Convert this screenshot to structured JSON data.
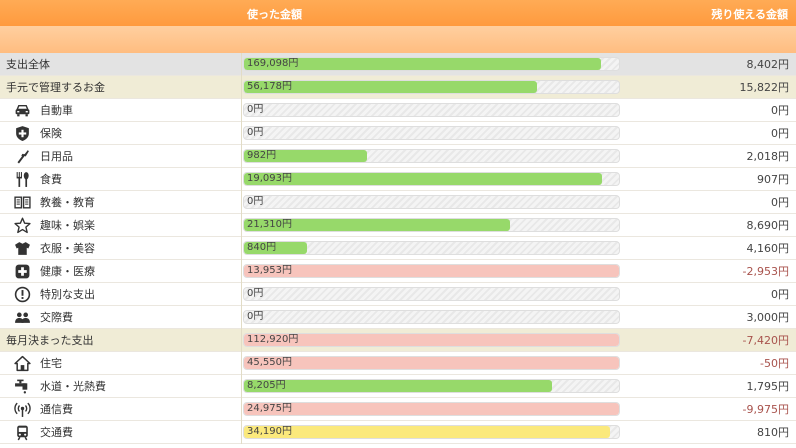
{
  "header": {
    "used_label": "使った金額",
    "remain_label": "残り使える金額"
  },
  "colors": {
    "header": "#ff9a3e",
    "green": "#97d96a",
    "pink": "#f7c4bc",
    "yellow": "#fbe97c",
    "negative": "#a8524c"
  },
  "rows": [
    {
      "kind": "total",
      "name": "支出全体",
      "used": "169,098円",
      "remain": "8,402円",
      "bar_pct": 95.2,
      "bar_color": "green"
    },
    {
      "kind": "group",
      "name": "手元で管理するお金",
      "used": "56,178円",
      "remain": "15,822円",
      "bar_pct": 78.0,
      "bar_color": "green"
    },
    {
      "kind": "item",
      "icon": "car-icon",
      "name": "自動車",
      "used": "0円",
      "remain": "0円",
      "bar_pct": 0,
      "bar_color": "green"
    },
    {
      "kind": "item",
      "icon": "shield-icon",
      "name": "保険",
      "used": "0円",
      "remain": "0円",
      "bar_pct": 0,
      "bar_color": "green"
    },
    {
      "kind": "item",
      "icon": "brush-icon",
      "name": "日用品",
      "used": "982円",
      "remain": "2,018円",
      "bar_pct": 32.7,
      "bar_color": "green"
    },
    {
      "kind": "item",
      "icon": "fork-spoon-icon",
      "name": "食費",
      "used": "19,093円",
      "remain": "907円",
      "bar_pct": 95.5,
      "bar_color": "green"
    },
    {
      "kind": "item",
      "icon": "book-icon",
      "name": "教養・教育",
      "used": "0円",
      "remain": "0円",
      "bar_pct": 0,
      "bar_color": "green"
    },
    {
      "kind": "item",
      "icon": "star-icon",
      "name": "趣味・娯楽",
      "used": "21,310円",
      "remain": "8,690円",
      "bar_pct": 71.0,
      "bar_color": "green"
    },
    {
      "kind": "item",
      "icon": "shirt-icon",
      "name": "衣服・美容",
      "used": "840円",
      "remain": "4,160円",
      "bar_pct": 16.8,
      "bar_color": "green"
    },
    {
      "kind": "item",
      "icon": "medical-cross-icon",
      "name": "健康・医療",
      "used": "13,953円",
      "remain": "-2,953円",
      "bar_pct": 100,
      "bar_color": "pink"
    },
    {
      "kind": "item",
      "icon": "exclamation-icon",
      "name": "特別な支出",
      "used": "0円",
      "remain": "0円",
      "bar_pct": 0,
      "bar_color": "green"
    },
    {
      "kind": "item",
      "icon": "people-icon",
      "name": "交際費",
      "used": "0円",
      "remain": "3,000円",
      "bar_pct": 0,
      "bar_color": "green"
    },
    {
      "kind": "group",
      "name": "毎月決まった支出",
      "used": "112,920円",
      "remain": "-7,420円",
      "bar_pct": 100,
      "bar_color": "pink"
    },
    {
      "kind": "item",
      "icon": "house-icon",
      "name": "住宅",
      "used": "45,550円",
      "remain": "-50円",
      "bar_pct": 100,
      "bar_color": "pink"
    },
    {
      "kind": "item",
      "icon": "faucet-icon",
      "name": "水道・光熱費",
      "used": "8,205円",
      "remain": "1,795円",
      "bar_pct": 82.0,
      "bar_color": "green"
    },
    {
      "kind": "item",
      "icon": "signal-icon",
      "name": "通信費",
      "used": "24,975円",
      "remain": "-9,975円",
      "bar_pct": 100,
      "bar_color": "pink"
    },
    {
      "kind": "item",
      "icon": "train-icon",
      "name": "交通費",
      "used": "34,190円",
      "remain": "810円",
      "bar_pct": 97.7,
      "bar_color": "yellow"
    }
  ]
}
